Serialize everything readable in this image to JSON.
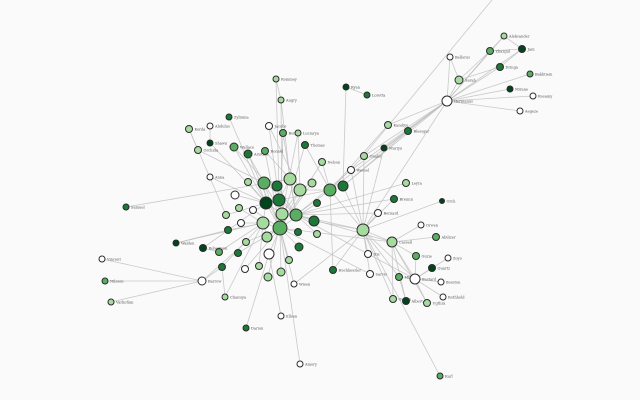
{
  "palette": {
    "w": "#ffffff",
    "l": "#a6dba0",
    "m": "#5aae61",
    "d": "#1b7837",
    "v": "#00441b"
  },
  "nodes": [
    {
      "label": "Hermanus",
      "c": "w"
    },
    {
      "label": "Aleksander",
      "c": "l"
    },
    {
      "label": "Jani",
      "c": "v"
    },
    {
      "label": "Zhazgul",
      "c": "m"
    },
    {
      "label": "Bellerus",
      "c": "w"
    },
    {
      "label": "Dringa",
      "c": "d"
    },
    {
      "label": "Bakhtiem",
      "c": "m"
    },
    {
      "label": "Sarah",
      "c": "l"
    },
    {
      "label": "Mirane",
      "c": "v"
    },
    {
      "label": "Rosamy",
      "c": "w"
    },
    {
      "label": "Aegeze",
      "c": "w"
    },
    {
      "label": "Rommey",
      "c": "l"
    },
    {
      "label": "Angry",
      "c": "l"
    },
    {
      "label": "Ryan",
      "c": "v"
    },
    {
      "label": "Loretta",
      "c": "d"
    },
    {
      "label": "Zyliuma",
      "c": "d"
    },
    {
      "label": "Abdulus",
      "c": "w"
    },
    {
      "label": "Korda",
      "c": "l"
    },
    {
      "label": "Jacobs",
      "c": "w"
    },
    {
      "label": "Borina",
      "c": "m"
    },
    {
      "label": "Luciarya",
      "c": "l"
    },
    {
      "label": "Thomas",
      "c": "d"
    },
    {
      "label": "Shawn",
      "c": "v"
    },
    {
      "label": "Orchida",
      "c": "l"
    },
    {
      "label": "Wallace",
      "c": "m"
    },
    {
      "label": "Aristide",
      "c": "d"
    },
    {
      "label": "Ronnel",
      "c": "m"
    },
    {
      "label": "Nelson",
      "c": "l"
    },
    {
      "label": "Wessel",
      "c": "w"
    },
    {
      "label": "Anna",
      "c": "w"
    },
    {
      "label": "Kandiyo",
      "c": "l"
    },
    {
      "label": "Blessgar",
      "c": "d"
    },
    {
      "label": "Muriyu",
      "c": "v"
    },
    {
      "label": "Onalor",
      "c": "l"
    },
    {
      "label": "Leyra",
      "c": "l"
    },
    {
      "label": "Brennn",
      "c": "d"
    },
    {
      "label": "Orch",
      "c": "v"
    },
    {
      "label": "Bernard",
      "c": "w"
    },
    {
      "label": "Orwen",
      "c": "w"
    },
    {
      "label": "Abilizer",
      "c": "m"
    },
    {
      "label": "Cassell",
      "c": "l"
    },
    {
      "label": "Iris",
      "c": "w"
    },
    {
      "label": "Guzie",
      "c": "m"
    },
    {
      "label": "Zoyo",
      "c": "w"
    },
    {
      "label": "Quartz",
      "c": "v"
    },
    {
      "label": "Sarvis",
      "c": "w"
    },
    {
      "label": "Mila",
      "c": "m"
    },
    {
      "label": "Bastard",
      "c": "w"
    },
    {
      "label": "Bosston",
      "c": "w"
    },
    {
      "label": "Rothhold",
      "c": "w"
    },
    {
      "label": "Gwenn",
      "c": "l"
    },
    {
      "label": "Albert",
      "c": "v"
    },
    {
      "label": "Ugthra",
      "c": "l"
    },
    {
      "label": "Samuel",
      "c": "d"
    },
    {
      "label": "Walden",
      "c": "v"
    },
    {
      "label": "Robertson",
      "c": "v"
    },
    {
      "label": "Vincent",
      "c": "w"
    },
    {
      "label": "Barrow",
      "c": "w"
    },
    {
      "label": "Nilsson",
      "c": "m"
    },
    {
      "label": "Varkofinn",
      "c": "l"
    },
    {
      "label": "Chanuya",
      "c": "l"
    },
    {
      "label": "Darion",
      "c": "d"
    },
    {
      "label": "Ellsen",
      "c": "w"
    },
    {
      "label": "Wisen",
      "c": "w"
    },
    {
      "label": "Amory",
      "c": "w"
    },
    {
      "label": "Karl",
      "c": "m"
    },
    {
      "label": "Hochkessler",
      "c": "d"
    },
    {
      "label": "",
      "c": "l"
    },
    {
      "label": "",
      "c": "l"
    },
    {
      "label": "",
      "c": "m"
    },
    {
      "label": "",
      "c": "d"
    },
    {
      "label": "",
      "c": "l"
    },
    {
      "label": "",
      "c": "l"
    },
    {
      "label": "",
      "c": "l"
    },
    {
      "label": "",
      "c": "m"
    },
    {
      "label": "",
      "c": "d"
    },
    {
      "label": "",
      "c": "w"
    },
    {
      "label": "",
      "c": "v"
    },
    {
      "label": "",
      "c": "d"
    },
    {
      "label": "",
      "c": "d"
    },
    {
      "label": "",
      "c": "l"
    },
    {
      "label": "",
      "c": "w"
    },
    {
      "label": "",
      "c": "l"
    },
    {
      "label": "",
      "c": "l"
    },
    {
      "label": "",
      "c": "m"
    },
    {
      "label": "",
      "c": "w"
    },
    {
      "label": "",
      "c": "l"
    },
    {
      "label": "",
      "c": "d"
    },
    {
      "label": "",
      "c": "m"
    },
    {
      "label": "",
      "c": "d"
    },
    {
      "label": "",
      "c": "d"
    },
    {
      "label": "",
      "c": "l"
    },
    {
      "label": "",
      "c": "l"
    },
    {
      "label": "",
      "c": "l"
    },
    {
      "label": "",
      "c": "d"
    },
    {
      "label": "",
      "c": "m"
    },
    {
      "label": "",
      "c": "d"
    },
    {
      "label": "",
      "c": "w"
    },
    {
      "label": "",
      "c": "l"
    },
    {
      "label": "",
      "c": "d"
    },
    {
      "label": "",
      "c": "w"
    },
    {
      "label": "",
      "c": "l"
    },
    {
      "label": "",
      "c": "l"
    },
    {
      "label": "",
      "c": "l"
    }
  ],
  "edges": [
    [
      0,
      1
    ],
    [
      0,
      2
    ],
    [
      0,
      3
    ],
    [
      0,
      4
    ],
    [
      0,
      5
    ],
    [
      0,
      6
    ],
    [
      0,
      7
    ],
    [
      0,
      8
    ],
    [
      0,
      9
    ],
    [
      0,
      10
    ],
    [
      0,
      28
    ],
    [
      0,
      33
    ],
    [
      0,
      74
    ],
    [
      0,
      75
    ],
    [
      0,
      67
    ],
    [
      0,
      32
    ],
    [
      0,
      30
    ],
    [
      7,
      4
    ],
    [
      7,
      3
    ],
    [
      7,
      5
    ],
    [
      3,
      1
    ],
    [
      3,
      2
    ],
    [
      1,
      2
    ],
    [
      5,
      2
    ],
    [
      11,
      12
    ],
    [
      12,
      71
    ],
    [
      12,
      83
    ],
    [
      11,
      88
    ],
    [
      13,
      75
    ],
    [
      14,
      13
    ],
    [
      15,
      77
    ],
    [
      16,
      22
    ],
    [
      17,
      23
    ],
    [
      17,
      82
    ],
    [
      18,
      72
    ],
    [
      19,
      88
    ],
    [
      20,
      83
    ],
    [
      21,
      88
    ],
    [
      21,
      74
    ],
    [
      22,
      77
    ],
    [
      23,
      69
    ],
    [
      24,
      84
    ],
    [
      25,
      88
    ],
    [
      26,
      88
    ],
    [
      27,
      74
    ],
    [
      28,
      67
    ],
    [
      29,
      77
    ],
    [
      30,
      74
    ],
    [
      31,
      75
    ],
    [
      32,
      67
    ],
    [
      33,
      74
    ],
    [
      34,
      84
    ],
    [
      35,
      67
    ],
    [
      36,
      67
    ],
    [
      37,
      84
    ],
    [
      38,
      40
    ],
    [
      39,
      40
    ],
    [
      40,
      88
    ],
    [
      40,
      84
    ],
    [
      40,
      67
    ],
    [
      41,
      67
    ],
    [
      42,
      40
    ],
    [
      43,
      47
    ],
    [
      44,
      47
    ],
    [
      45,
      67
    ],
    [
      46,
      47
    ],
    [
      47,
      40
    ],
    [
      48,
      47
    ],
    [
      49,
      47
    ],
    [
      50,
      40
    ],
    [
      51,
      46
    ],
    [
      52,
      47
    ],
    [
      53,
      71
    ],
    [
      54,
      89
    ],
    [
      55,
      95
    ],
    [
      57,
      56
    ],
    [
      57,
      58
    ],
    [
      57,
      59
    ],
    [
      57,
      93
    ],
    [
      60,
      99
    ],
    [
      61,
      97
    ],
    [
      62,
      97
    ],
    [
      63,
      88
    ],
    [
      64,
      88
    ],
    [
      65,
      67
    ],
    [
      66,
      74
    ],
    [
      69,
      71
    ],
    [
      69,
      77
    ],
    [
      69,
      83
    ],
    [
      69,
      88
    ],
    [
      71,
      72
    ],
    [
      71,
      78
    ],
    [
      71,
      84
    ],
    [
      72,
      74
    ],
    [
      72,
      83
    ],
    [
      72,
      88
    ],
    [
      74,
      84
    ],
    [
      74,
      67
    ],
    [
      74,
      78
    ],
    [
      77,
      78
    ],
    [
      77,
      83
    ],
    [
      77,
      86
    ],
    [
      77,
      88
    ],
    [
      78,
      83
    ],
    [
      78,
      84
    ],
    [
      83,
      84
    ],
    [
      83,
      88
    ],
    [
      84,
      87
    ],
    [
      84,
      67
    ],
    [
      86,
      88
    ],
    [
      86,
      92
    ],
    [
      88,
      92
    ],
    [
      88,
      94
    ],
    [
      88,
      97
    ],
    [
      88,
      90
    ],
    [
      76,
      77
    ],
    [
      80,
      86
    ],
    [
      81,
      88
    ],
    [
      82,
      77
    ],
    [
      85,
      86
    ],
    [
      89,
      86
    ],
    [
      91,
      84
    ],
    [
      93,
      88
    ],
    [
      95,
      86
    ],
    [
      96,
      88
    ],
    [
      98,
      88
    ],
    [
      99,
      86
    ],
    [
      100,
      88
    ],
    [
      101,
      86
    ],
    [
      102,
      88
    ],
    [
      103,
      83
    ],
    [
      68,
      77
    ],
    [
      70,
      84
    ],
    [
      73,
      88
    ],
    [
      75,
      67
    ],
    [
      79,
      88
    ],
    [
      87,
      67
    ],
    [
      24,
      77
    ],
    [
      25,
      69
    ],
    [
      26,
      71
    ],
    [
      18,
      78
    ],
    [
      19,
      84
    ],
    [
      20,
      72
    ],
    [
      27,
      88
    ],
    [
      28,
      84
    ],
    [
      33,
      67
    ],
    [
      35,
      84
    ],
    [
      37,
      67
    ],
    [
      41,
      84
    ],
    [
      45,
      88
    ],
    [
      47,
      67
    ],
    [
      46,
      67
    ],
    [
      50,
      67
    ],
    [
      51,
      40
    ],
    [
      52,
      40
    ],
    [
      66,
      67
    ],
    [
      99,
      57
    ],
    [
      54,
      86
    ],
    [
      55,
      77
    ],
    [
      60,
      86
    ],
    [
      63,
      67
    ],
    [
      41,
      47
    ],
    [
      42,
      47
    ]
  ]
}
